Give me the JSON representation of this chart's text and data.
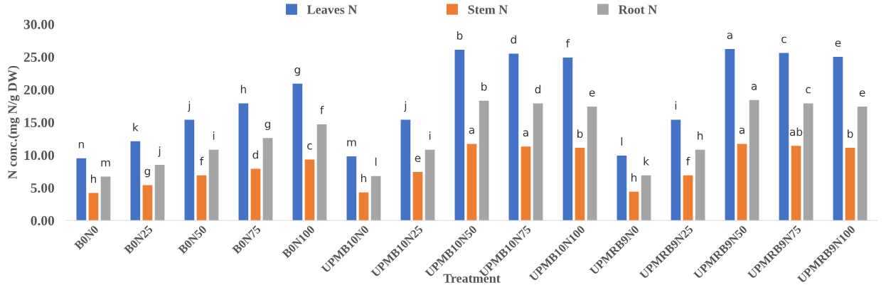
{
  "chart_data": {
    "type": "bar",
    "xlabel": "Treatment",
    "ylabel": "N conc.(mg N/g DW)",
    "categories": [
      "B0N0",
      "B0N25",
      "B0N50",
      "B0N75",
      "B0N100",
      "UPMB10N0",
      "UPMB10N25",
      "UPMB10N50",
      "UPMB10N75",
      "UPMB10N100",
      "UPMRB9N0",
      "UPMRB9N25",
      "UPMRB9N50",
      "UPMRB9N75",
      "UPMRB9N100"
    ],
    "series": [
      {
        "name": "Leaves N",
        "color": "#4472c4",
        "values": [
          9.5,
          12.1,
          15.4,
          17.9,
          20.9,
          9.8,
          15.4,
          26.1,
          25.5,
          24.9,
          9.9,
          15.4,
          26.2,
          25.6,
          25.0
        ],
        "value_labels": [
          "n",
          "k",
          "j",
          "h",
          "g",
          "m",
          "j",
          "b",
          "d",
          "f",
          "l",
          "i",
          "a",
          "c",
          "e"
        ]
      },
      {
        "name": "Stem N",
        "color": "#ed7d31",
        "values": [
          4.2,
          5.4,
          6.9,
          7.9,
          9.3,
          4.3,
          7.4,
          11.7,
          11.3,
          11.1,
          4.4,
          6.9,
          11.7,
          11.4,
          11.1
        ],
        "value_labels": [
          "h",
          "g",
          "f",
          "d",
          "c",
          "h",
          "e",
          "a",
          "a",
          "b",
          "h",
          "f",
          "a",
          "ab",
          "b"
        ]
      },
      {
        "name": "Root N",
        "color": "#a5a5a5",
        "values": [
          6.7,
          8.5,
          10.8,
          12.6,
          14.7,
          6.8,
          10.8,
          18.3,
          17.9,
          17.4,
          6.9,
          10.8,
          18.4,
          17.9,
          17.4
        ],
        "value_labels": [
          "m",
          "j",
          "i",
          "g",
          "f",
          "l",
          "i",
          "b",
          "d",
          "e",
          "k",
          "h",
          "a",
          "c",
          "e"
        ]
      }
    ],
    "ylim": [
      0,
      30
    ],
    "yticks": [
      {
        "value": 0,
        "label": "0.00"
      },
      {
        "value": 5,
        "label": "5.00"
      },
      {
        "value": 10,
        "label": "10.00"
      },
      {
        "value": 15,
        "label": "15.00"
      },
      {
        "value": 20,
        "label": "20.00"
      },
      {
        "value": 25,
        "label": "25.00"
      },
      {
        "value": 30,
        "label": "30.00"
      }
    ],
    "grid": false,
    "legend": "top"
  }
}
